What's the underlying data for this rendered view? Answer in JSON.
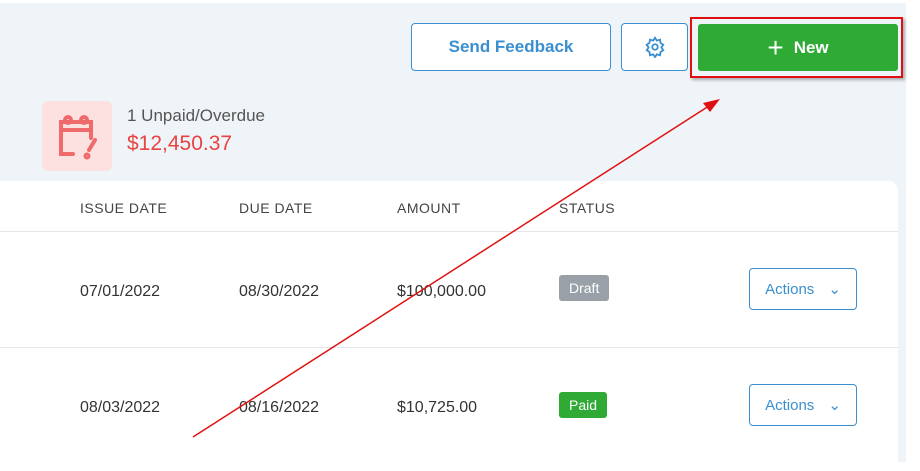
{
  "toolbar": {
    "feedback": "Send Feedback",
    "new": "New"
  },
  "summary": {
    "label": "1  Unpaid/Overdue",
    "amount": "$12,450.37"
  },
  "table": {
    "headers": [
      "ISSUE DATE",
      "DUE DATE",
      "AMOUNT",
      "STATUS"
    ],
    "rows": [
      {
        "issue": "07/01/2022",
        "due": "08/30/2022",
        "amount": "$100,000.00",
        "status": "Draft",
        "actions": "Actions"
      },
      {
        "issue": "08/03/2022",
        "due": "08/16/2022",
        "amount": "$10,725.00",
        "status": "Paid",
        "actions": "Actions"
      }
    ]
  },
  "colors": {
    "accent": "#3a8fd0",
    "new": "#2eaa35",
    "draft": "#9aa0a8",
    "paid": "#2eaa35",
    "overdue": "#e94343",
    "annotation": "#e01010"
  }
}
